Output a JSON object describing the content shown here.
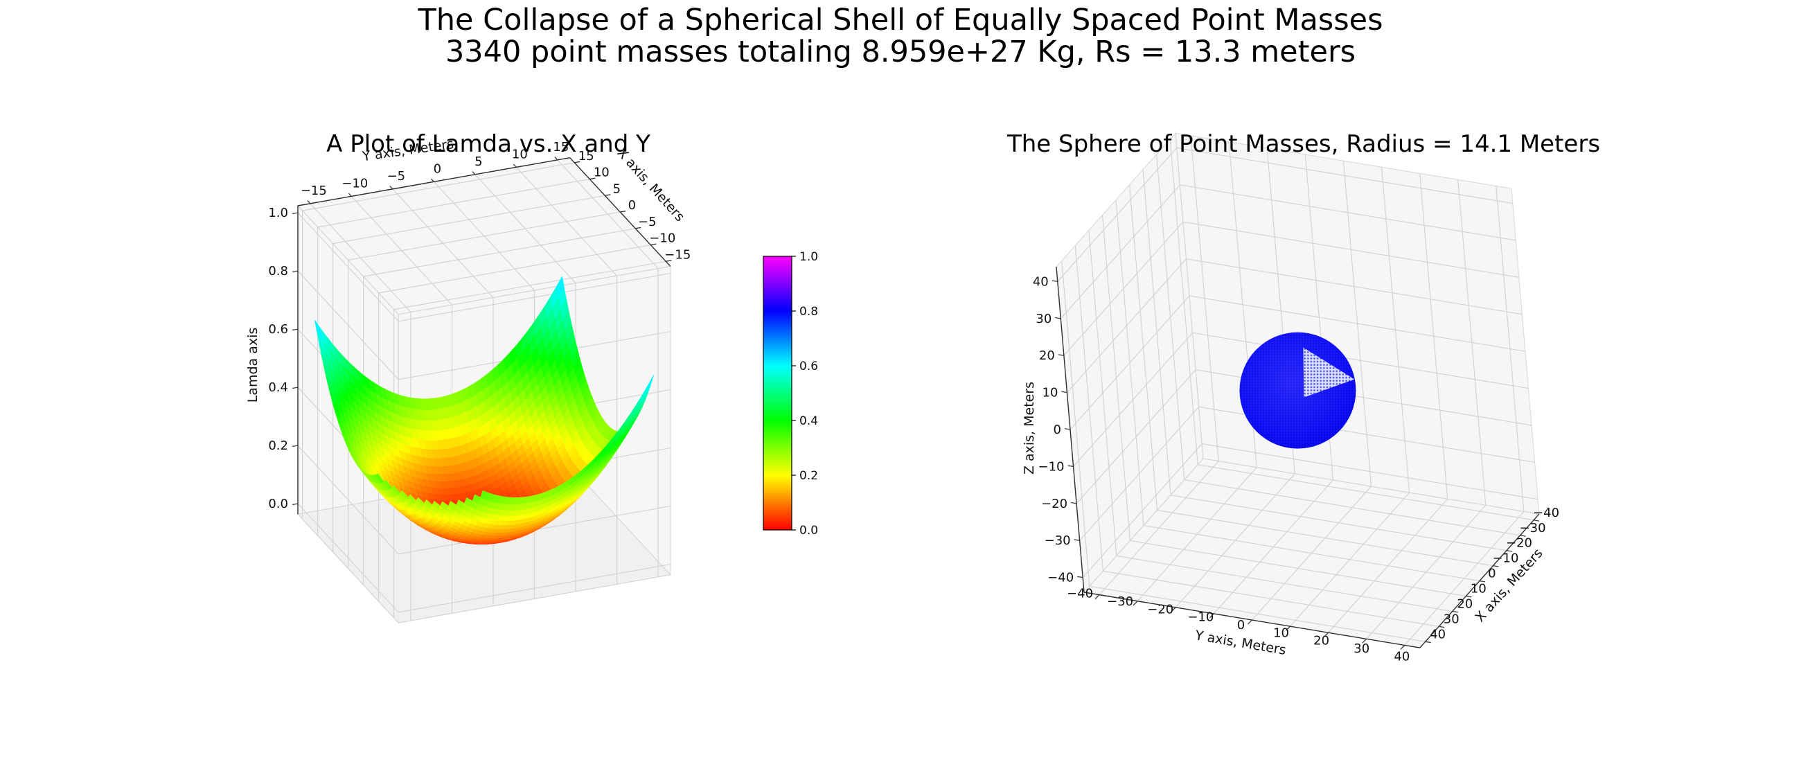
{
  "figure": {
    "title_line1": "The Collapse of a Spherical Shell of Equally Spaced Point Masses",
    "title_line2": "3340 point masses totaling 8.959e+27 Kg, Rs = 13.3 meters",
    "background_color": "#ffffff"
  },
  "chart_data": [
    {
      "type": "surface",
      "title": "A Plot of Lamda vs. X and Y",
      "xlabel": "X axis, Meters",
      "ylabel": "Y axis, Meters",
      "zlabel": "Lamda axis",
      "x_ticks": [
        15,
        10,
        5,
        0,
        -5,
        -10,
        -15
      ],
      "y_ticks": [
        -15,
        -10,
        -5,
        0,
        5,
        10,
        15
      ],
      "z_ticks": [
        0.0,
        0.2,
        0.4,
        0.6,
        0.8,
        1.0
      ],
      "x_range": [
        -15,
        15
      ],
      "y_range": [
        -15,
        15
      ],
      "z_range": [
        0,
        1
      ],
      "grid": true,
      "surface": {
        "description": "Bowl-shaped surface: lamda is lowest at x=y=0 and rises toward the four corners; front corner data missing so three cyan peaks are visible",
        "lamda_formula": "lamda = peak * ((x^2+y^2)/450)^exponent",
        "peak": 0.64,
        "exponent": 1.1,
        "r2max": 450,
        "grid_n": 42,
        "front_corner_cut": -20.5,
        "colormap": "gist_rainbow"
      }
    },
    {
      "type": "scatter3d",
      "title": "The Sphere of Point Masses, Radius = 14.1 Meters",
      "xlabel": "X axis, Meters",
      "ylabel": "Y axis, Meters",
      "zlabel": "Z axis, Meters",
      "x_ticks": [
        -40,
        -30,
        -20,
        -10,
        0,
        10,
        20,
        30,
        40
      ],
      "y_ticks": [
        -40,
        -30,
        -20,
        -10,
        0,
        10,
        20,
        30,
        40
      ],
      "z_ticks": [
        -40,
        -30,
        -20,
        -10,
        0,
        10,
        20,
        30,
        40
      ],
      "x_range": [
        -40,
        40
      ],
      "y_range": [
        -40,
        40
      ],
      "z_range": [
        -40,
        40
      ],
      "grid": true,
      "sphere": {
        "center": [
          0,
          0,
          0
        ],
        "radius_m": 14.1,
        "n_points": 3340,
        "point_color": "#0a0af0",
        "sparse_patch": "triangular lighter region of sparser points on the upper-right of the sphere"
      }
    }
  ],
  "colorbar": {
    "colormap": "gist_rainbow",
    "ticks": [
      "0.0",
      "0.2",
      "0.4",
      "0.6",
      "0.8",
      "1.0"
    ],
    "stops": [
      [
        "0.0",
        "#ff0000"
      ],
      [
        "0.2",
        "#ffff00"
      ],
      [
        "0.4",
        "#00ff00"
      ],
      [
        "0.6",
        "#00ffff"
      ],
      [
        "0.8",
        "#0000ff"
      ],
      [
        "1.0",
        "#ff00ff"
      ]
    ]
  }
}
